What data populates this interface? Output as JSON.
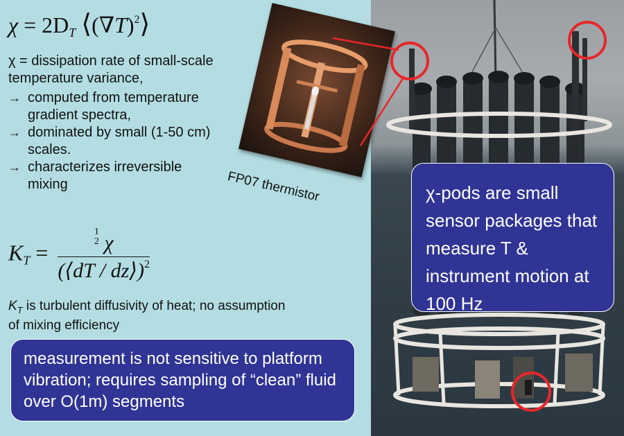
{
  "equations": {
    "chi_definition": {
      "lhs": "χ",
      "equals": "=",
      "coef": "2D",
      "coef_sub": "T",
      "open_outer": "⟨",
      "open_inner": "(",
      "nabla": "∇T",
      "close_inner": ")",
      "exponent": "2",
      "close_outer": "⟩"
    },
    "kt_definition": {
      "lhs": "K",
      "lhs_sub": "T",
      "equals": "=",
      "half_num": "1",
      "half_den": "2",
      "numerator_symbol": "χ",
      "denominator": "(⟨dT / dz⟩)",
      "denominator_exponent": "2"
    }
  },
  "text": {
    "chi_description": "χ = dissipation rate of small-scale temperature variance,",
    "bullets": [
      "computed from temperature gradient spectra,",
      "dominated by small (1-50 cm) scales.",
      "characterizes irreversible mixing"
    ],
    "bullet_arrow": "→",
    "kt_symbol": "K",
    "kt_symbol_sub": "T",
    "kt_description": " is turbulent diffusivity of heat; no assumption of mixing efficiency",
    "thermistor_caption": "FP07 thermistor"
  },
  "callouts": {
    "bottom": "measurement is not sensitive to platform vibration; requires sampling of “clean” fluid over O(1m) segments",
    "right": "χ-pods are small sensor packages that measure T & instrument motion at 100 Hz"
  },
  "colors": {
    "background": "#b3dde2",
    "callout_fill": "#2f3495",
    "highlight_circle": "#e8262a"
  }
}
